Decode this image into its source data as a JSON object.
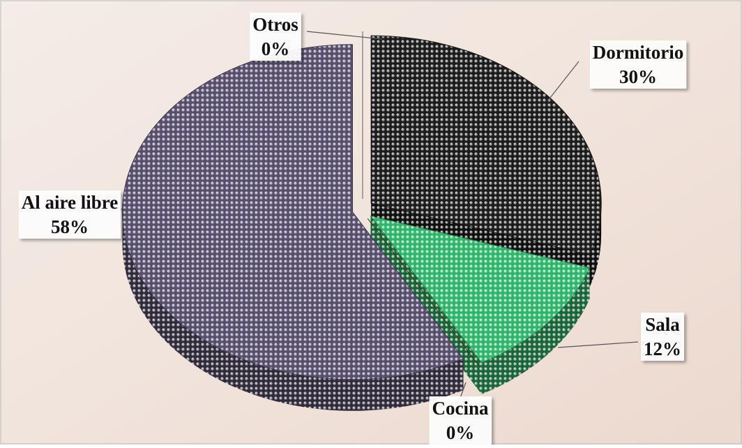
{
  "chart_data": {
    "type": "pie",
    "categories": [
      "Dormitorio",
      "Sala",
      "Cocina",
      "Al aire libre",
      "Otros"
    ],
    "values": [
      30,
      12,
      0,
      58,
      0
    ],
    "value_labels": [
      "30%",
      "12%",
      "0%",
      "58%",
      "0%"
    ],
    "colors": [
      "#1c1c1c",
      "#2fb56a",
      "#4a5a10",
      "#574d6c",
      "#8a8a8a"
    ]
  }
}
